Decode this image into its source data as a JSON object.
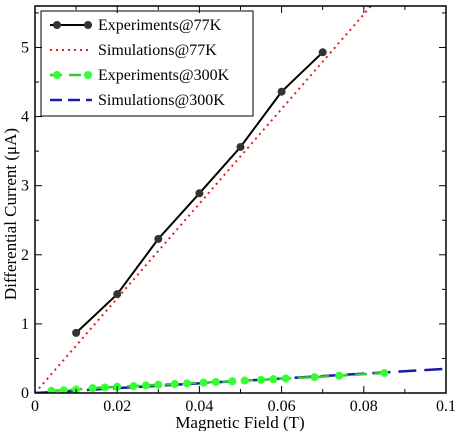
{
  "chart_data": {
    "type": "line",
    "title": "",
    "xlabel": "Magnetic Field (T)",
    "ylabel": "Differential Current (μA)",
    "xlim": [
      0,
      0.1
    ],
    "ylim": [
      0,
      5.6
    ],
    "xticks": [
      0,
      0.02,
      0.04,
      0.06,
      0.08,
      0.1
    ],
    "xtick_labels": [
      "0",
      "0.02",
      "0.04",
      "0.06",
      "0.08",
      "0.1"
    ],
    "yticks": [
      0,
      1,
      2,
      3,
      4,
      5
    ],
    "ytick_labels": [
      "0",
      "1",
      "2",
      "3",
      "4",
      "5"
    ],
    "grid": false,
    "legend_position": "top-left",
    "series": [
      {
        "name": "Experiments@77K",
        "style": "solid-with-markers",
        "color": "#000000",
        "marker_color": "#333333",
        "x": [
          0.01,
          0.02,
          0.03,
          0.04,
          0.05,
          0.06,
          0.07
        ],
        "y": [
          0.87,
          1.43,
          2.23,
          2.89,
          3.56,
          4.36,
          4.93
        ]
      },
      {
        "name": "Simulations@77K",
        "style": "dotted",
        "color": "#e0201c",
        "x": [
          0.0,
          0.1
        ],
        "y": [
          0.0,
          6.85
        ]
      },
      {
        "name": "Experiments@300K",
        "style": "dashed-with-markers",
        "color": "#33cc33",
        "marker_color": "#33ff33",
        "x": [
          0.004,
          0.007,
          0.01,
          0.014,
          0.017,
          0.02,
          0.024,
          0.027,
          0.03,
          0.034,
          0.037,
          0.041,
          0.044,
          0.048,
          0.051,
          0.055,
          0.058,
          0.061,
          0.068,
          0.074,
          0.085
        ],
        "y": [
          0.03,
          0.04,
          0.05,
          0.07,
          0.08,
          0.09,
          0.1,
          0.11,
          0.12,
          0.13,
          0.14,
          0.15,
          0.16,
          0.17,
          0.18,
          0.19,
          0.2,
          0.21,
          0.23,
          0.25,
          0.29
        ]
      },
      {
        "name": "Simulations@300K",
        "style": "dashed",
        "color": "#1a1aa8",
        "x": [
          0.0,
          0.1
        ],
        "y": [
          0.0,
          0.35
        ]
      }
    ]
  }
}
